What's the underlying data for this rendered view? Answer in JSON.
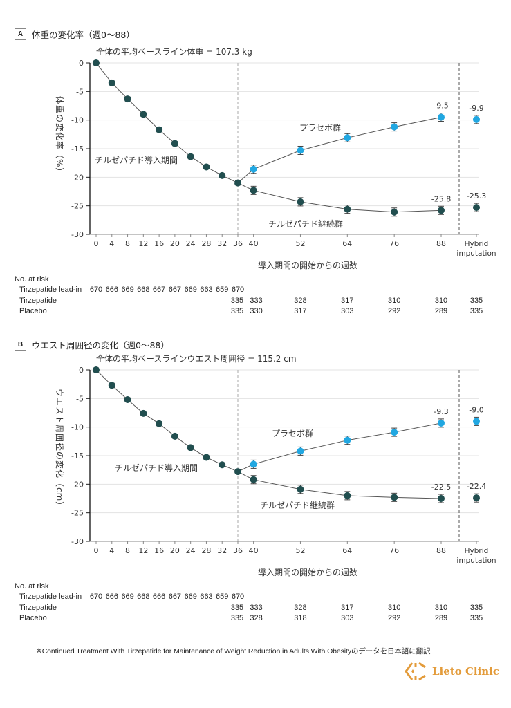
{
  "chart_data": [
    {
      "type": "line",
      "panel_letter": "A",
      "panel_title": "体重の変化率（週0〜88）",
      "subtitle": "全体の平均ベースライン体重 = 107.3 kg",
      "ylabel": "体重の変化率（%）",
      "xlabel": "導入期間の開始からの週数",
      "ylim": [
        -30,
        0
      ],
      "yticks": [
        0,
        -5,
        -10,
        -15,
        -20,
        -25,
        -30
      ],
      "xtick_labels": [
        "0",
        "4",
        "8",
        "12",
        "16",
        "20",
        "24",
        "28",
        "32",
        "36",
        "40",
        "52",
        "64",
        "76",
        "88",
        "Hybrid imputation"
      ],
      "grid": true,
      "annotations": {
        "leadin": "チルゼパチド導入期間",
        "placebo": "プラセボ群",
        "continued": "チルゼパチド継続群"
      },
      "colors": {
        "tirzepatide": "#214e4f",
        "placebo": "#21a7e1"
      },
      "series": [
        {
          "name": "Tirzepatide lead-in",
          "x": [
            0,
            4,
            8,
            12,
            16,
            20,
            24,
            28,
            32,
            36
          ],
          "values": [
            0,
            -3.5,
            -6.3,
            -9.0,
            -11.7,
            -14.1,
            -16.4,
            -18.2,
            -19.7,
            -21.0
          ]
        },
        {
          "name": "Tirzepatide",
          "x": [
            36,
            40,
            52,
            64,
            76,
            88
          ],
          "values": [
            -21.0,
            -22.3,
            -24.3,
            -25.6,
            -26.1,
            -25.8
          ],
          "hybrid": -25.3,
          "labels": {
            "88": "-25.8",
            "hybrid": "-25.3"
          }
        },
        {
          "name": "Placebo",
          "x": [
            36,
            40,
            52,
            64,
            76,
            88
          ],
          "values": [
            -21.0,
            -18.6,
            -15.3,
            -13.1,
            -11.2,
            -9.5
          ],
          "hybrid": -9.9,
          "labels": {
            "88": "-9.5",
            "hybrid": "-9.9"
          }
        }
      ],
      "risk_table": {
        "title": "No. at risk",
        "rows": [
          {
            "label": "Tirzepatide lead-in",
            "values": [
              "670",
              "666",
              "669",
              "668",
              "667",
              "667",
              "669",
              "663",
              "659",
              "670"
            ]
          },
          {
            "label": "Tirzepatide",
            "values": [
              "335",
              "333",
              "328",
              "317",
              "310",
              "310",
              "335"
            ]
          },
          {
            "label": "Placebo",
            "values": [
              "335",
              "330",
              "317",
              "303",
              "292",
              "289",
              "335"
            ]
          }
        ]
      }
    },
    {
      "type": "line",
      "panel_letter": "B",
      "panel_title": "ウエスト周囲径の変化（週0〜88）",
      "subtitle": "全体の平均ベースラインウエスト周囲径 = 115.2 cm",
      "ylabel": "ウエスト周囲径の変化（cm）",
      "xlabel": "導入期間の開始からの週数",
      "ylim": [
        -30,
        0
      ],
      "yticks": [
        0,
        -5,
        -10,
        -15,
        -20,
        -25,
        -30
      ],
      "xtick_labels": [
        "0",
        "4",
        "8",
        "12",
        "16",
        "20",
        "24",
        "28",
        "32",
        "36",
        "40",
        "52",
        "64",
        "76",
        "88",
        "Hybrid imputation"
      ],
      "grid": true,
      "annotations": {
        "leadin": "チルゼパチド導入期間",
        "placebo": "プラセボ群",
        "continued": "チルゼパチド継続群"
      },
      "colors": {
        "tirzepatide": "#214e4f",
        "placebo": "#21a7e1"
      },
      "series": [
        {
          "name": "Tirzepatide lead-in",
          "x": [
            0,
            4,
            8,
            12,
            16,
            20,
            24,
            28,
            32,
            36
          ],
          "values": [
            0,
            -2.7,
            -5.2,
            -7.6,
            -9.4,
            -11.6,
            -13.6,
            -15.3,
            -16.6,
            -17.8
          ]
        },
        {
          "name": "Tirzepatide",
          "x": [
            36,
            40,
            52,
            64,
            76,
            88
          ],
          "values": [
            -17.8,
            -19.2,
            -20.9,
            -22.0,
            -22.3,
            -22.5
          ],
          "hybrid": -22.4,
          "labels": {
            "88": "-22.5",
            "hybrid": "-22.4"
          }
        },
        {
          "name": "Placebo",
          "x": [
            36,
            40,
            52,
            64,
            76,
            88
          ],
          "values": [
            -17.8,
            -16.5,
            -14.2,
            -12.3,
            -10.9,
            -9.3
          ],
          "hybrid": -9.0,
          "labels": {
            "88": "-9.3",
            "hybrid": "-9.0"
          }
        }
      ],
      "risk_table": {
        "title": "No. at risk",
        "rows": [
          {
            "label": "Tirzepatide lead-in",
            "values": [
              "670",
              "666",
              "669",
              "668",
              "666",
              "667",
              "669",
              "663",
              "659",
              "670"
            ]
          },
          {
            "label": "Tirzepatide",
            "values": [
              "335",
              "333",
              "328",
              "317",
              "310",
              "310",
              "335"
            ]
          },
          {
            "label": "Placebo",
            "values": [
              "335",
              "328",
              "318",
              "303",
              "292",
              "289",
              "335"
            ]
          }
        ]
      }
    }
  ],
  "footnote": "※Continued Treatment With Tirzepatide for Maintenance of Weight Reduction in Adults With Obesityのデータを日本語に翻訳",
  "logo": {
    "text": "Lieto Clinic",
    "icon": "diamond-arrows-logo-icon",
    "color": "#e39b3a"
  }
}
